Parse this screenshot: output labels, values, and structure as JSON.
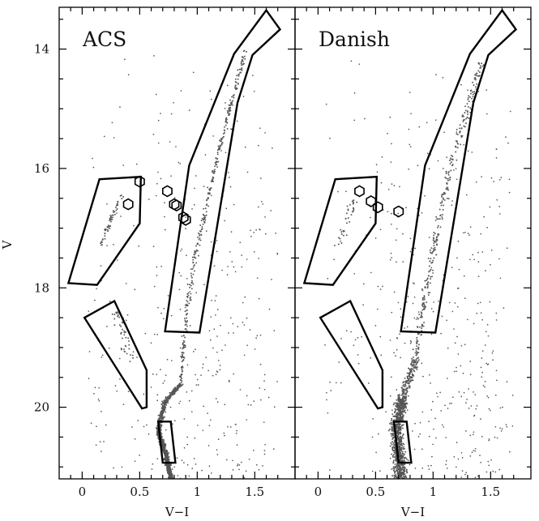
{
  "chart_data": [
    {
      "type": "scatter",
      "panel_label": "ACS",
      "xlabel": "V−I",
      "ylabel": "V",
      "xlim": [
        -0.2,
        1.85
      ],
      "ylim": [
        21.2,
        13.3
      ],
      "y_inverted": true,
      "x_ticks": [
        {
          "value": 0,
          "label": "0"
        },
        {
          "value": 0.5,
          "label": "0.5"
        },
        {
          "value": 1,
          "label": "1"
        },
        {
          "value": 1.5,
          "label": "1.5"
        }
      ],
      "y_ticks": [
        {
          "value": 14,
          "label": "14"
        },
        {
          "value": 16,
          "label": "16"
        },
        {
          "value": 18,
          "label": "18"
        },
        {
          "value": 20,
          "label": "20"
        }
      ],
      "regions": [
        {
          "name": "red-giant-branch-box",
          "points": [
            [
              0.72,
              18.73
            ],
            [
              0.93,
              15.95
            ],
            [
              1.32,
              14.08
            ],
            [
              1.6,
              13.35
            ],
            [
              1.72,
              13.67
            ],
            [
              1.48,
              14.1
            ],
            [
              1.35,
              14.9
            ],
            [
              1.02,
              18.75
            ]
          ]
        },
        {
          "name": "horizontal-branch-box",
          "points": [
            [
              0.15,
              16.18
            ],
            [
              0.51,
              16.14
            ],
            [
              0.5,
              16.92
            ],
            [
              0.13,
              17.95
            ],
            [
              -0.12,
              17.92
            ]
          ]
        },
        {
          "name": "lower-left-box",
          "points": [
            [
              0.28,
              18.22
            ],
            [
              0.56,
              19.38
            ],
            [
              0.56,
              20.0
            ],
            [
              0.52,
              20.02
            ],
            [
              0.02,
              18.5
            ]
          ]
        },
        {
          "name": "subgiant-box",
          "points": [
            [
              0.66,
              20.24
            ],
            [
              0.77,
              20.24
            ],
            [
              0.81,
              20.93
            ],
            [
              0.7,
              20.93
            ]
          ]
        }
      ],
      "hexagon_stars": [
        [
          0.5,
          16.22
        ],
        [
          0.4,
          16.6
        ],
        [
          0.74,
          16.38
        ],
        [
          0.8,
          16.6
        ],
        [
          0.82,
          16.62
        ],
        [
          0.88,
          16.82
        ],
        [
          0.9,
          16.86
        ]
      ],
      "populations": [
        {
          "kind": "ms-turnoff",
          "n": 650,
          "color_at_mag": [
            [
              20.4,
              0.66
            ],
            [
              20.8,
              0.73
            ],
            [
              21.2,
              0.77
            ]
          ],
          "v_range": [
            20.4,
            21.2
          ],
          "spread": 0.02
        },
        {
          "kind": "subgiant-branch",
          "n": 320,
          "color_at_mag": [
            [
              19.6,
              0.86
            ],
            [
              19.9,
              0.72
            ],
            [
              20.4,
              0.66
            ]
          ],
          "v_range": [
            19.6,
            20.4
          ],
          "spread": 0.02
        },
        {
          "kind": "red-giant-branch",
          "n": 330,
          "color_at_mag": [
            [
              14.0,
              1.42
            ],
            [
              16.0,
              1.15
            ],
            [
              17.5,
              0.98
            ],
            [
              18.5,
              0.9
            ],
            [
              19.6,
              0.86
            ]
          ],
          "v_range": [
            14.0,
            19.6
          ],
          "spread": 0.018
        },
        {
          "kind": "horizontal-branch",
          "n": 55,
          "color_at_mag": [
            [
              16.45,
              0.34
            ],
            [
              16.9,
              0.24
            ],
            [
              17.3,
              0.16
            ]
          ],
          "v_range": [
            16.45,
            17.3
          ],
          "spread": 0.02
        },
        {
          "kind": "blue-stragglers",
          "n": 40,
          "color_at_mag": [
            [
              18.4,
              0.3
            ],
            [
              19.3,
              0.42
            ]
          ],
          "v_range": [
            18.4,
            19.3
          ],
          "spread": 0.05
        },
        {
          "kind": "field",
          "n": 380,
          "x_range": [
            0.05,
            1.7
          ],
          "v_range": [
            14.0,
            21.2
          ]
        }
      ]
    },
    {
      "type": "scatter",
      "panel_label": "Danish",
      "xlabel": "V−I",
      "xlim": [
        -0.2,
        1.85
      ],
      "ylim": [
        21.2,
        13.3
      ],
      "y_inverted": true,
      "x_ticks": [
        {
          "value": 0,
          "label": "0"
        },
        {
          "value": 0.5,
          "label": "0.5"
        },
        {
          "value": 1,
          "label": "1"
        },
        {
          "value": 1.5,
          "label": "1.5"
        }
      ],
      "regions": [
        {
          "name": "red-giant-branch-box",
          "points": [
            [
              0.72,
              18.73
            ],
            [
              0.93,
              15.95
            ],
            [
              1.32,
              14.08
            ],
            [
              1.6,
              13.35
            ],
            [
              1.72,
              13.67
            ],
            [
              1.48,
              14.1
            ],
            [
              1.35,
              14.9
            ],
            [
              1.02,
              18.75
            ]
          ]
        },
        {
          "name": "horizontal-branch-box",
          "points": [
            [
              0.15,
              16.18
            ],
            [
              0.51,
              16.14
            ],
            [
              0.5,
              16.92
            ],
            [
              0.13,
              17.95
            ],
            [
              -0.12,
              17.92
            ]
          ]
        },
        {
          "name": "lower-left-box",
          "points": [
            [
              0.28,
              18.22
            ],
            [
              0.56,
              19.38
            ],
            [
              0.56,
              20.0
            ],
            [
              0.52,
              20.02
            ],
            [
              0.02,
              18.5
            ]
          ]
        },
        {
          "name": "subgiant-box",
          "points": [
            [
              0.66,
              20.24
            ],
            [
              0.77,
              20.24
            ],
            [
              0.81,
              20.93
            ],
            [
              0.7,
              20.93
            ]
          ]
        }
      ],
      "hexagon_stars": [
        [
          0.36,
          16.38
        ],
        [
          0.46,
          16.55
        ],
        [
          0.52,
          16.65
        ],
        [
          0.7,
          16.72
        ]
      ],
      "populations": [
        {
          "kind": "ms-turnoff",
          "n": 900,
          "color_at_mag": [
            [
              19.8,
              0.74
            ],
            [
              20.4,
              0.68
            ],
            [
              21.2,
              0.72
            ]
          ],
          "v_range": [
            19.8,
            21.2
          ],
          "spread": 0.05
        },
        {
          "kind": "subgiant-branch",
          "n": 150,
          "color_at_mag": [
            [
              19.2,
              0.85
            ],
            [
              19.8,
              0.74
            ]
          ],
          "v_range": [
            19.2,
            19.8
          ],
          "spread": 0.04
        },
        {
          "kind": "red-giant-branch",
          "n": 300,
          "color_at_mag": [
            [
              14.2,
              1.42
            ],
            [
              16.0,
              1.15
            ],
            [
              17.5,
              0.98
            ],
            [
              18.5,
              0.9
            ],
            [
              19.2,
              0.85
            ]
          ],
          "v_range": [
            14.2,
            19.2
          ],
          "spread": 0.03
        },
        {
          "kind": "horizontal-branch",
          "n": 35,
          "color_at_mag": [
            [
              16.5,
              0.32
            ],
            [
              17.3,
              0.18
            ]
          ],
          "v_range": [
            16.5,
            17.3
          ],
          "spread": 0.04
        },
        {
          "kind": "field",
          "n": 420,
          "x_range": [
            0.05,
            1.7
          ],
          "v_range": [
            14.0,
            21.2
          ]
        }
      ]
    }
  ]
}
